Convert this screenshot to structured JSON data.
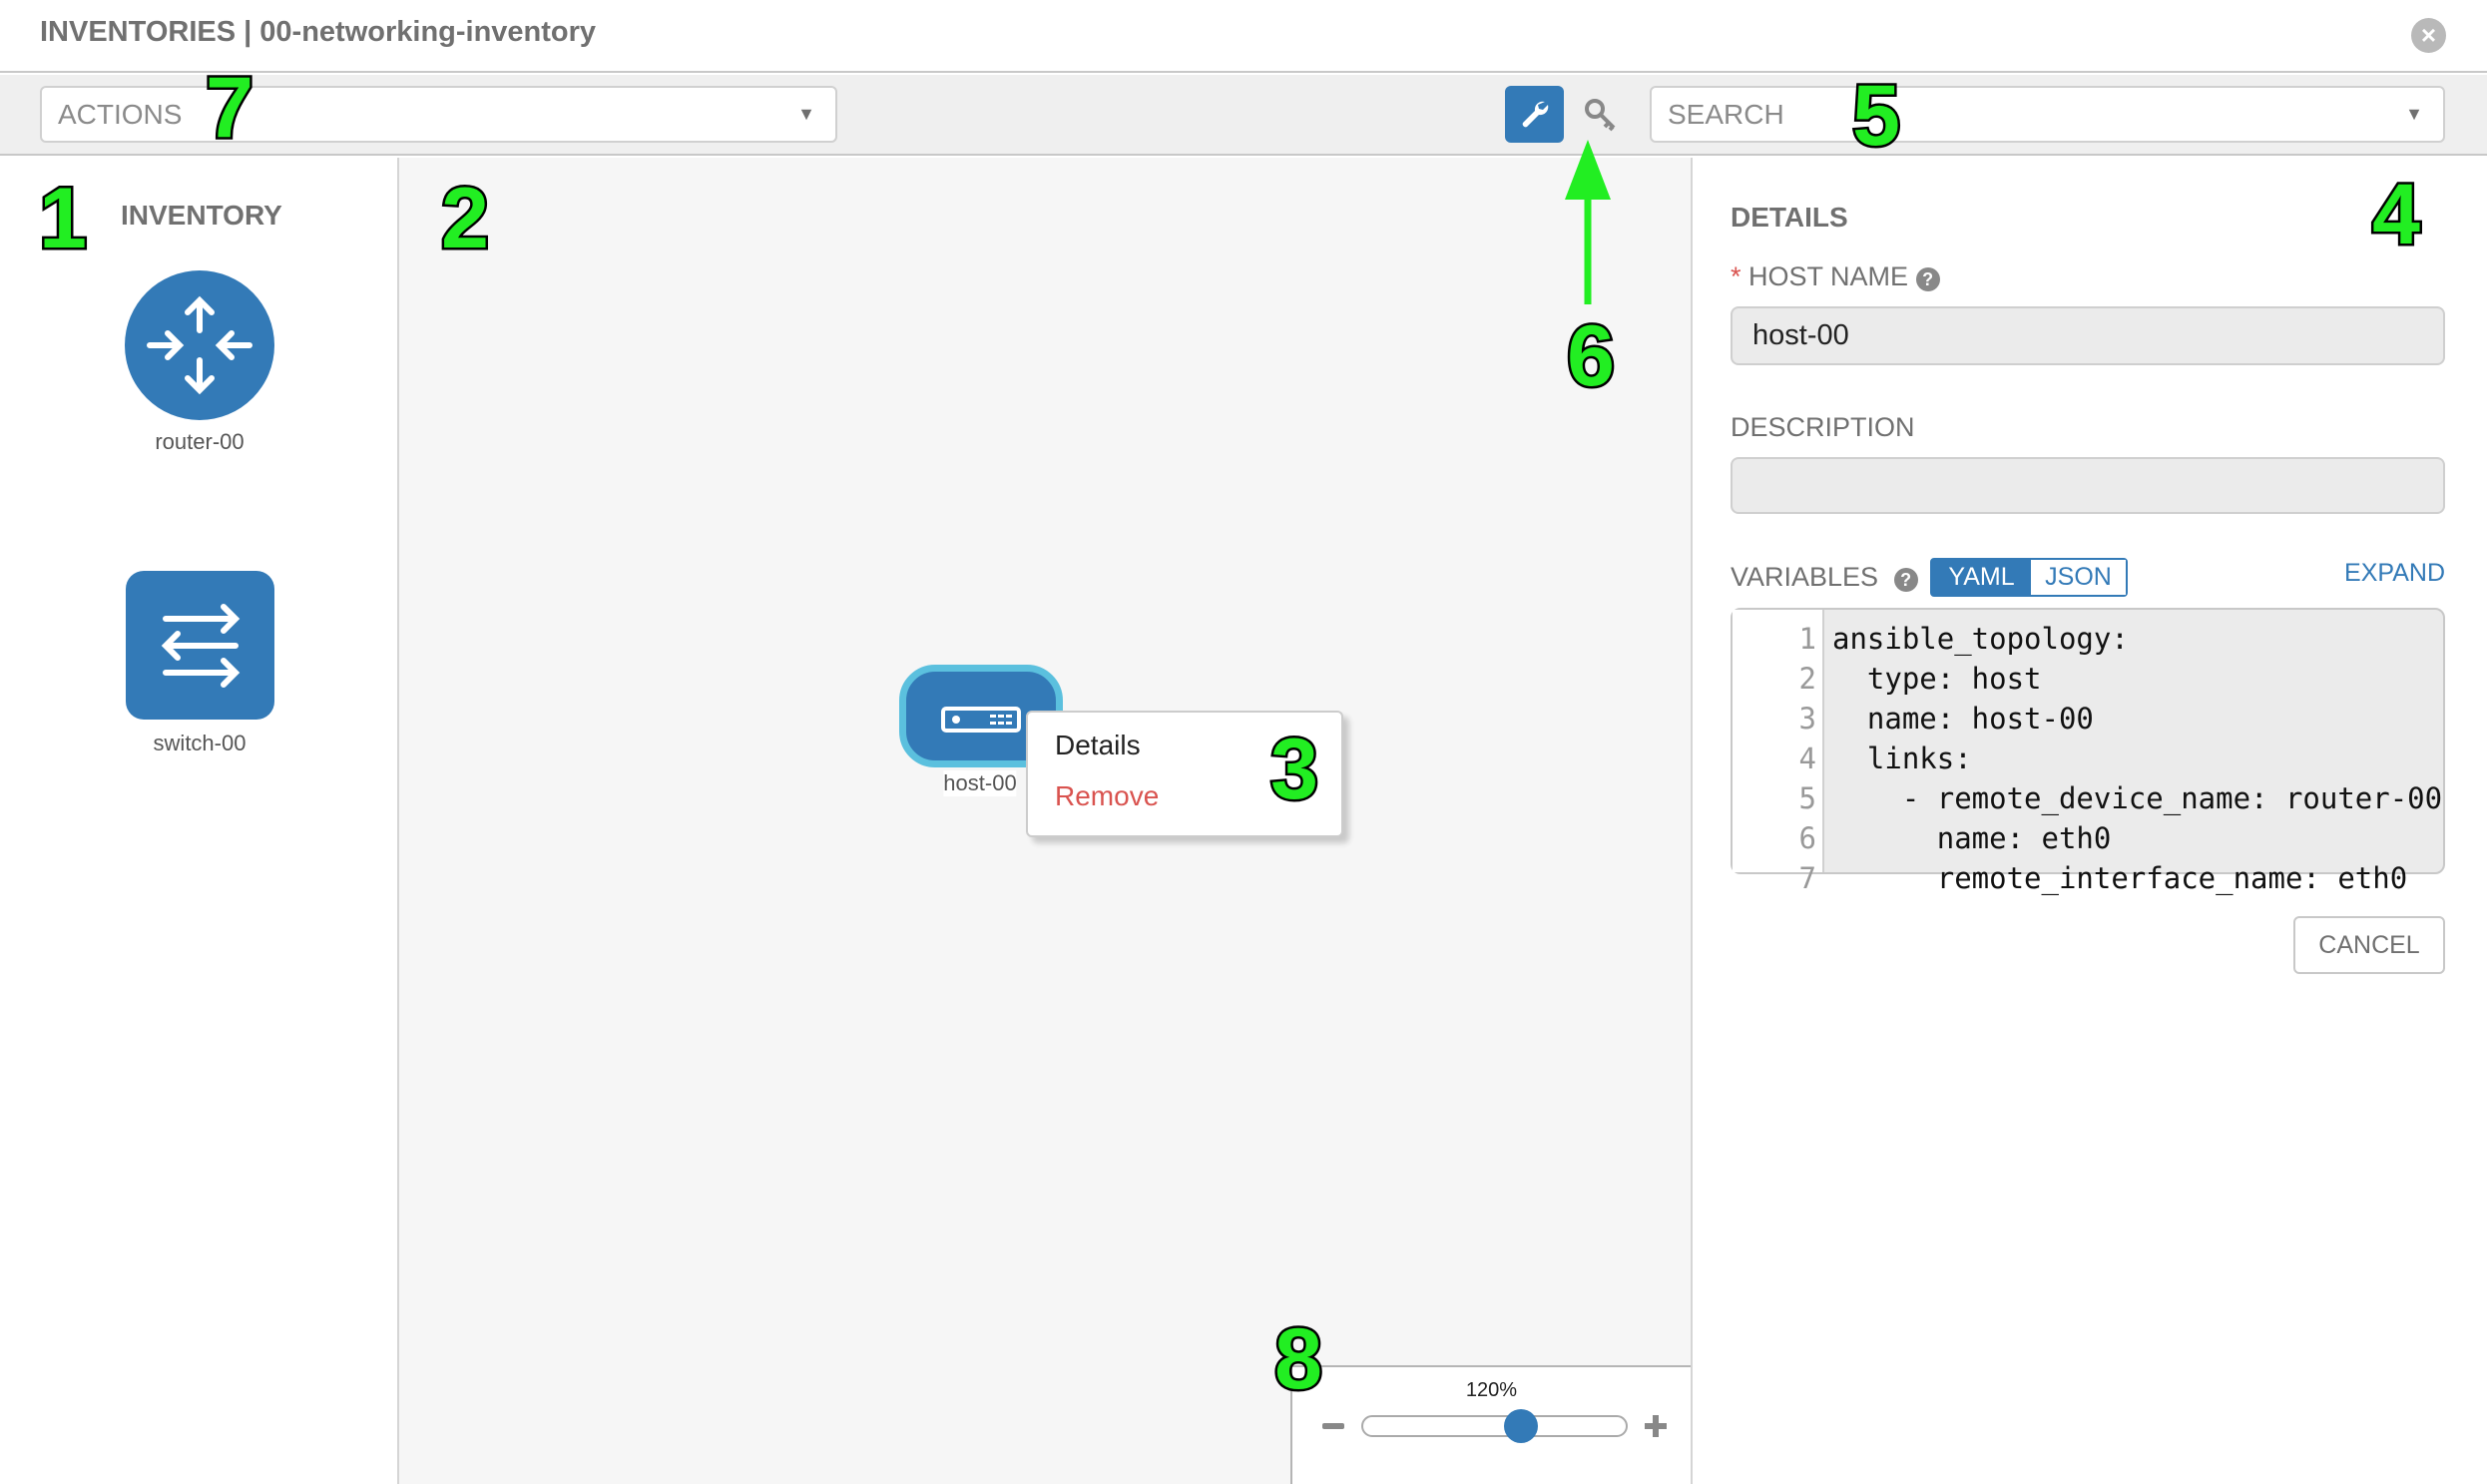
{
  "window": {
    "title": "INVENTORIES | 00-networking-inventory",
    "close_icon": "close-circle-icon"
  },
  "toolbar": {
    "actions_placeholder": "ACTIONS",
    "search_placeholder": "SEARCH",
    "mode_buttons": [
      {
        "icon": "wrench-icon",
        "active": true
      },
      {
        "icon": "key-icon",
        "active": false
      }
    ]
  },
  "inventory": {
    "title": "INVENTORY",
    "items": [
      {
        "label": "router-00",
        "icon": "router-icon"
      },
      {
        "label": "switch-00",
        "icon": "switch-icon"
      }
    ]
  },
  "canvas": {
    "node": {
      "label": "host-00",
      "icon": "host-server-icon",
      "selected": true
    },
    "context_menu": {
      "items": [
        {
          "label": "Details"
        },
        {
          "label": "Remove"
        }
      ]
    },
    "zoom": {
      "label": "120%",
      "value_percent": 120
    }
  },
  "details": {
    "title": "DETAILS",
    "host_name": {
      "label": "HOST NAME",
      "required_mark": "*",
      "value": "host-00"
    },
    "description": {
      "label": "DESCRIPTION",
      "value": ""
    },
    "variables": {
      "label": "VARIABLES",
      "toggle": [
        "YAML",
        "JSON"
      ],
      "active": "YAML",
      "expand": "EXPAND",
      "lines": [
        "ansible_topology:",
        "  type: host",
        "  name: host-00",
        "  links:",
        "    - remote_device_name: router-00",
        "      name: eth0",
        "      remote_interface_name: eth0"
      ]
    },
    "cancel": "CANCEL"
  },
  "annotations": [
    "1",
    "2",
    "3",
    "4",
    "5",
    "6",
    "7",
    "8"
  ],
  "colors": {
    "primary": "#337ab7",
    "danger": "#d9534f",
    "selection": "#5bc0de",
    "annotation": "#22ee22"
  }
}
